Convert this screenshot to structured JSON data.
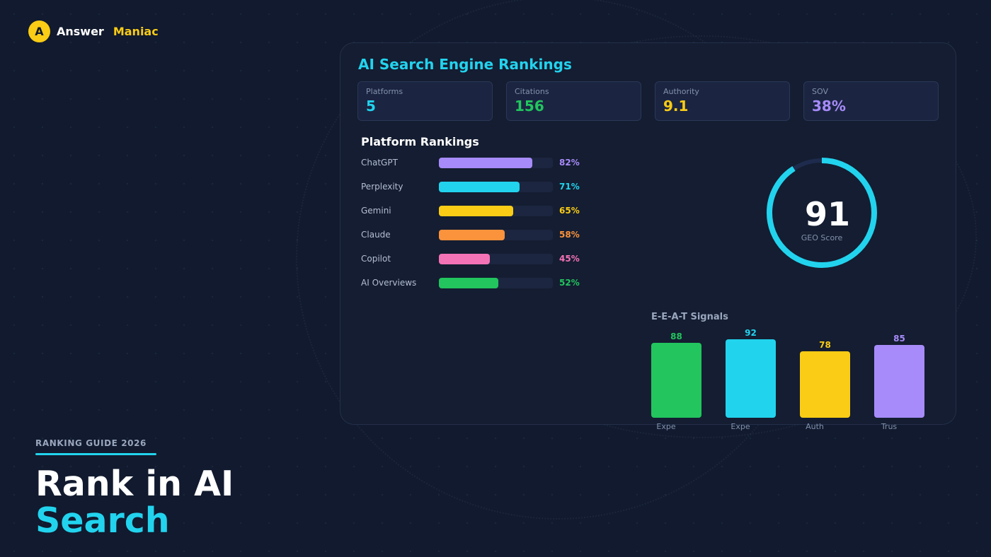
{
  "brand": {
    "logo_letter": "A",
    "name_part1": "Answer",
    "name_part2": "Maniac"
  },
  "hero": {
    "kicker": "RANKING GUIDE 2026",
    "title_line1": "Rank in AI",
    "title_line2": "Search"
  },
  "dashboard": {
    "title": "AI Search Engine Rankings",
    "stats": [
      {
        "label": "Platforms",
        "value": "5",
        "color": "#22d3ee"
      },
      {
        "label": "Citations",
        "value": "156",
        "color": "#22c55e"
      },
      {
        "label": "Authority",
        "value": "9.1",
        "color": "#facc15"
      },
      {
        "label": "SOV",
        "value": "38%",
        "color": "#a78bfa"
      }
    ],
    "rankings_title": "Platform Rankings",
    "rankings": [
      {
        "name": "ChatGPT",
        "percent": 82,
        "label": "82%",
        "color": "#a78bfa"
      },
      {
        "name": "Perplexity",
        "percent": 71,
        "label": "71%",
        "color": "#22d3ee"
      },
      {
        "name": "Gemini",
        "percent": 65,
        "label": "65%",
        "color": "#facc15"
      },
      {
        "name": "Claude",
        "percent": 58,
        "label": "58%",
        "color": "#fb923c"
      },
      {
        "name": "Copilot",
        "percent": 45,
        "label": "45%",
        "color": "#f472b6"
      },
      {
        "name": "AI Overviews",
        "percent": 52,
        "label": "52%",
        "color": "#22c55e"
      }
    ],
    "geo": {
      "value": "91",
      "label": "GEO Score",
      "fraction": 0.91,
      "color": "#22d3ee",
      "track_color": "#1e2b4d"
    },
    "eeat_title": "E-E-A-T Signals"
  },
  "chart_data": {
    "type": "bar",
    "title": "E-E-A-T Signals",
    "categories": [
      "Expe",
      "Expe",
      "Auth",
      "Trus"
    ],
    "values": [
      88,
      92,
      78,
      85
    ],
    "colors": [
      "#22c55e",
      "#22d3ee",
      "#facc15",
      "#a78bfa"
    ],
    "xlabel": "",
    "ylabel": ""
  }
}
